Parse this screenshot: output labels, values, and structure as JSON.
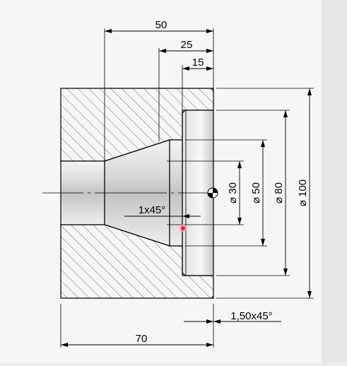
{
  "drawing": {
    "dimensions": {
      "len_50": "50",
      "len_25": "25",
      "len_15": "15",
      "len_70": "70",
      "dia_30": "⌀ 30",
      "dia_50": "⌀ 50",
      "dia_80": "⌀ 80",
      "dia_100": "⌀ 100"
    },
    "annotations": {
      "chamfer_inner": "1x45°",
      "chamfer_outer": "1,50x45°"
    },
    "colors": {
      "background": "#ececec",
      "paper": "#f7f7f7",
      "line": "#000000",
      "hatch": "#555555",
      "marker": "#e6203a"
    }
  }
}
